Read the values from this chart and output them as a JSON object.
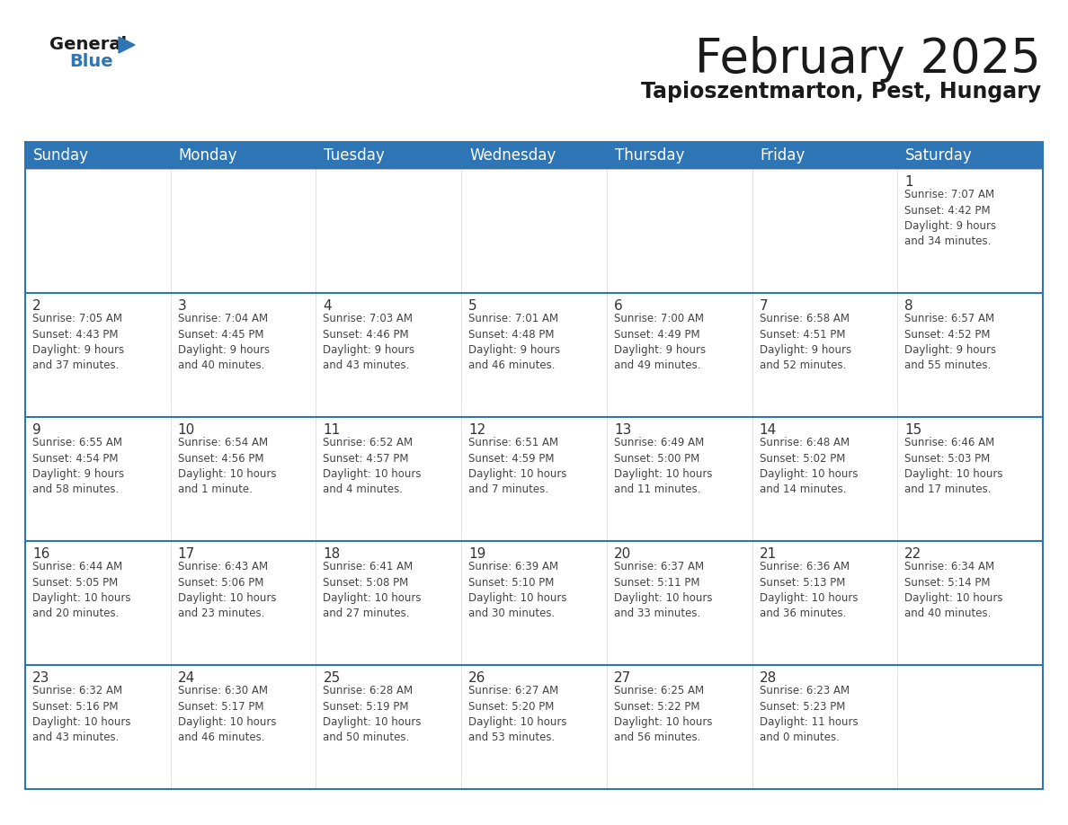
{
  "title": "February 2025",
  "subtitle": "Tapioszentmarton, Pest, Hungary",
  "header_bg": "#2E75B6",
  "header_text_color": "#FFFFFF",
  "cell_bg_odd": "#FFFFFF",
  "cell_bg_even": "#F0F4F8",
  "border_color": "#2E75B6",
  "row_line_color": "#2E75B6",
  "text_color": "#444444",
  "days_of_week": [
    "Sunday",
    "Monday",
    "Tuesday",
    "Wednesday",
    "Thursday",
    "Friday",
    "Saturday"
  ],
  "calendar_data": [
    [
      {
        "day": null,
        "sunrise": null,
        "sunset": null,
        "daylight": null
      },
      {
        "day": null,
        "sunrise": null,
        "sunset": null,
        "daylight": null
      },
      {
        "day": null,
        "sunrise": null,
        "sunset": null,
        "daylight": null
      },
      {
        "day": null,
        "sunrise": null,
        "sunset": null,
        "daylight": null
      },
      {
        "day": null,
        "sunrise": null,
        "sunset": null,
        "daylight": null
      },
      {
        "day": null,
        "sunrise": null,
        "sunset": null,
        "daylight": null
      },
      {
        "day": 1,
        "sunrise": "7:07 AM",
        "sunset": "4:42 PM",
        "daylight": "9 hours\nand 34 minutes."
      }
    ],
    [
      {
        "day": 2,
        "sunrise": "7:05 AM",
        "sunset": "4:43 PM",
        "daylight": "9 hours\nand 37 minutes."
      },
      {
        "day": 3,
        "sunrise": "7:04 AM",
        "sunset": "4:45 PM",
        "daylight": "9 hours\nand 40 minutes."
      },
      {
        "day": 4,
        "sunrise": "7:03 AM",
        "sunset": "4:46 PM",
        "daylight": "9 hours\nand 43 minutes."
      },
      {
        "day": 5,
        "sunrise": "7:01 AM",
        "sunset": "4:48 PM",
        "daylight": "9 hours\nand 46 minutes."
      },
      {
        "day": 6,
        "sunrise": "7:00 AM",
        "sunset": "4:49 PM",
        "daylight": "9 hours\nand 49 minutes."
      },
      {
        "day": 7,
        "sunrise": "6:58 AM",
        "sunset": "4:51 PM",
        "daylight": "9 hours\nand 52 minutes."
      },
      {
        "day": 8,
        "sunrise": "6:57 AM",
        "sunset": "4:52 PM",
        "daylight": "9 hours\nand 55 minutes."
      }
    ],
    [
      {
        "day": 9,
        "sunrise": "6:55 AM",
        "sunset": "4:54 PM",
        "daylight": "9 hours\nand 58 minutes."
      },
      {
        "day": 10,
        "sunrise": "6:54 AM",
        "sunset": "4:56 PM",
        "daylight": "10 hours\nand 1 minute."
      },
      {
        "day": 11,
        "sunrise": "6:52 AM",
        "sunset": "4:57 PM",
        "daylight": "10 hours\nand 4 minutes."
      },
      {
        "day": 12,
        "sunrise": "6:51 AM",
        "sunset": "4:59 PM",
        "daylight": "10 hours\nand 7 minutes."
      },
      {
        "day": 13,
        "sunrise": "6:49 AM",
        "sunset": "5:00 PM",
        "daylight": "10 hours\nand 11 minutes."
      },
      {
        "day": 14,
        "sunrise": "6:48 AM",
        "sunset": "5:02 PM",
        "daylight": "10 hours\nand 14 minutes."
      },
      {
        "day": 15,
        "sunrise": "6:46 AM",
        "sunset": "5:03 PM",
        "daylight": "10 hours\nand 17 minutes."
      }
    ],
    [
      {
        "day": 16,
        "sunrise": "6:44 AM",
        "sunset": "5:05 PM",
        "daylight": "10 hours\nand 20 minutes."
      },
      {
        "day": 17,
        "sunrise": "6:43 AM",
        "sunset": "5:06 PM",
        "daylight": "10 hours\nand 23 minutes."
      },
      {
        "day": 18,
        "sunrise": "6:41 AM",
        "sunset": "5:08 PM",
        "daylight": "10 hours\nand 27 minutes."
      },
      {
        "day": 19,
        "sunrise": "6:39 AM",
        "sunset": "5:10 PM",
        "daylight": "10 hours\nand 30 minutes."
      },
      {
        "day": 20,
        "sunrise": "6:37 AM",
        "sunset": "5:11 PM",
        "daylight": "10 hours\nand 33 minutes."
      },
      {
        "day": 21,
        "sunrise": "6:36 AM",
        "sunset": "5:13 PM",
        "daylight": "10 hours\nand 36 minutes."
      },
      {
        "day": 22,
        "sunrise": "6:34 AM",
        "sunset": "5:14 PM",
        "daylight": "10 hours\nand 40 minutes."
      }
    ],
    [
      {
        "day": 23,
        "sunrise": "6:32 AM",
        "sunset": "5:16 PM",
        "daylight": "10 hours\nand 43 minutes."
      },
      {
        "day": 24,
        "sunrise": "6:30 AM",
        "sunset": "5:17 PM",
        "daylight": "10 hours\nand 46 minutes."
      },
      {
        "day": 25,
        "sunrise": "6:28 AM",
        "sunset": "5:19 PM",
        "daylight": "10 hours\nand 50 minutes."
      },
      {
        "day": 26,
        "sunrise": "6:27 AM",
        "sunset": "5:20 PM",
        "daylight": "10 hours\nand 53 minutes."
      },
      {
        "day": 27,
        "sunrise": "6:25 AM",
        "sunset": "5:22 PM",
        "daylight": "10 hours\nand 56 minutes."
      },
      {
        "day": 28,
        "sunrise": "6:23 AM",
        "sunset": "5:23 PM",
        "daylight": "11 hours\nand 0 minutes."
      },
      {
        "day": null,
        "sunrise": null,
        "sunset": null,
        "daylight": null
      }
    ]
  ],
  "logo_general_color": "#1a1a1a",
  "logo_blue_color": "#2E75B6",
  "title_fontsize": 38,
  "subtitle_fontsize": 17,
  "header_fontsize": 12,
  "day_num_fontsize": 11,
  "cell_text_fontsize": 8.5
}
